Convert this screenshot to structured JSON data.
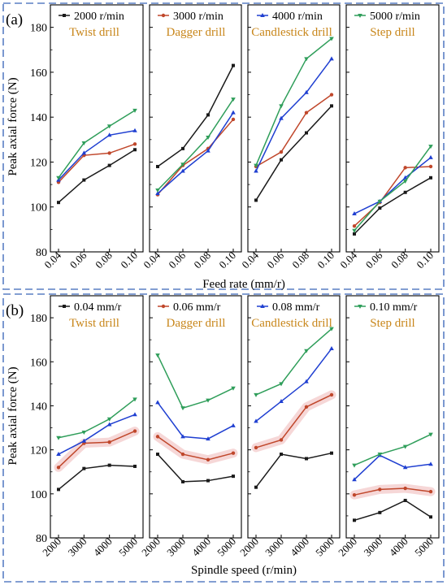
{
  "colors": {
    "frame_border": "#5a7fc4",
    "drill_label": "#c8861a",
    "axis": "#000000",
    "highlight": "#f6d7d7",
    "series": [
      "#1a1a1a",
      "#c0472b",
      "#1f3fd1",
      "#2f9e5a"
    ]
  },
  "chart_data": [
    {
      "panel_label": "(a)",
      "type": "line",
      "xlabel": "Feed rate (mm/r)",
      "ylabel": "Peak axial force (N)",
      "x_ticks": [
        "0.04",
        "0.06",
        "0.08",
        "0.10"
      ],
      "ylim": [
        80,
        190
      ],
      "y_ticks": [
        80,
        100,
        120,
        140,
        160,
        180
      ],
      "grid": false,
      "legend_placement": "top",
      "subplots": [
        {
          "title": "Twist drill",
          "series": [
            {
              "name": "2000 r/min",
              "values": [
                102,
                112,
                118.5,
                125.5
              ]
            },
            {
              "name": "3000 r/min",
              "values": [
                111,
                123,
                124,
                128
              ]
            },
            {
              "name": "4000 r/min",
              "values": [
                112,
                124,
                132,
                134
              ]
            },
            {
              "name": "5000 r/min",
              "values": [
                113,
                128.5,
                136,
                143
              ]
            }
          ]
        },
        {
          "title": "Dagger drill",
          "series": [
            {
              "name": "2000 r/min",
              "values": [
                118,
                126,
                141,
                163
              ]
            },
            {
              "name": "3000 r/min",
              "values": [
                105.5,
                118.5,
                126,
                139
              ]
            },
            {
              "name": "4000 r/min",
              "values": [
                106,
                116,
                125,
                142
              ]
            },
            {
              "name": "5000 r/min",
              "values": [
                107.5,
                119,
                131,
                148
              ]
            }
          ]
        },
        {
          "title": "Candlestick drill",
          "series": [
            {
              "name": "2000 r/min",
              "values": [
                103,
                121,
                133,
                145
              ]
            },
            {
              "name": "3000 r/min",
              "values": [
                118,
                124.5,
                142,
                150
              ]
            },
            {
              "name": "4000 r/min",
              "values": [
                116,
                139.5,
                151,
                166
              ]
            },
            {
              "name": "5000 r/min",
              "values": [
                118.5,
                145,
                166,
                175
              ]
            }
          ]
        },
        {
          "title": "Step drill",
          "series": [
            {
              "name": "2000 r/min",
              "values": [
                88,
                99.5,
                106.5,
                113
              ]
            },
            {
              "name": "3000 r/min",
              "values": [
                91.5,
                102,
                117.5,
                118
              ]
            },
            {
              "name": "4000 r/min",
              "values": [
                97,
                102.5,
                113,
                122
              ]
            },
            {
              "name": "5000 r/min",
              "values": [
                89.5,
                102.5,
                111.5,
                127
              ]
            }
          ]
        }
      ]
    },
    {
      "panel_label": "(b)",
      "type": "line",
      "xlabel": "Spindle speed (r/min)",
      "ylabel": "Peak axial force (N)",
      "x_ticks": [
        "2000",
        "3000",
        "4000",
        "5000"
      ],
      "ylim": [
        80,
        190
      ],
      "y_ticks": [
        80,
        100,
        120,
        140,
        160,
        180
      ],
      "grid": false,
      "legend_placement": "top",
      "subplots": [
        {
          "title": "Twist drill",
          "series": [
            {
              "name": "0.04 mm/r",
              "values": [
                102,
                111.5,
                113,
                112.5
              ]
            },
            {
              "name": "0.06 mm/r",
              "values": [
                112,
                123,
                123.5,
                128.5
              ]
            },
            {
              "name": "0.08 mm/r",
              "values": [
                118,
                124,
                131.5,
                136
              ]
            },
            {
              "name": "0.10 mm/r",
              "values": [
                125.5,
                128,
                134,
                143
              ]
            }
          ]
        },
        {
          "title": "Dagger drill",
          "series": [
            {
              "name": "0.04 mm/r",
              "values": [
                118,
                105.5,
                106,
                108
              ]
            },
            {
              "name": "0.06 mm/r",
              "values": [
                126,
                118,
                115.5,
                118.5
              ]
            },
            {
              "name": "0.08 mm/r",
              "values": [
                141.5,
                126,
                125,
                131
              ]
            },
            {
              "name": "0.10 mm/r",
              "values": [
                163,
                139,
                142.5,
                148
              ]
            }
          ]
        },
        {
          "title": "Candlestick drill",
          "series": [
            {
              "name": "0.04 mm/r",
              "values": [
                103,
                118,
                116,
                118.5
              ]
            },
            {
              "name": "0.06 mm/r",
              "values": [
                121,
                124.5,
                139.5,
                145
              ]
            },
            {
              "name": "0.08 mm/r",
              "values": [
                133,
                142,
                151,
                166
              ]
            },
            {
              "name": "0.10 mm/r",
              "values": [
                145,
                150,
                165,
                175
              ]
            }
          ]
        },
        {
          "title": "Step drill",
          "series": [
            {
              "name": "0.04 mm/r",
              "values": [
                88,
                91.5,
                97,
                89.5
              ]
            },
            {
              "name": "0.06 mm/r",
              "values": [
                99.5,
                102,
                102.5,
                101
              ]
            },
            {
              "name": "0.08 mm/r",
              "values": [
                106.5,
                117.5,
                112,
                113.5
              ]
            },
            {
              "name": "0.10 mm/r",
              "values": [
                113,
                118,
                121.5,
                127
              ]
            }
          ]
        }
      ]
    }
  ]
}
